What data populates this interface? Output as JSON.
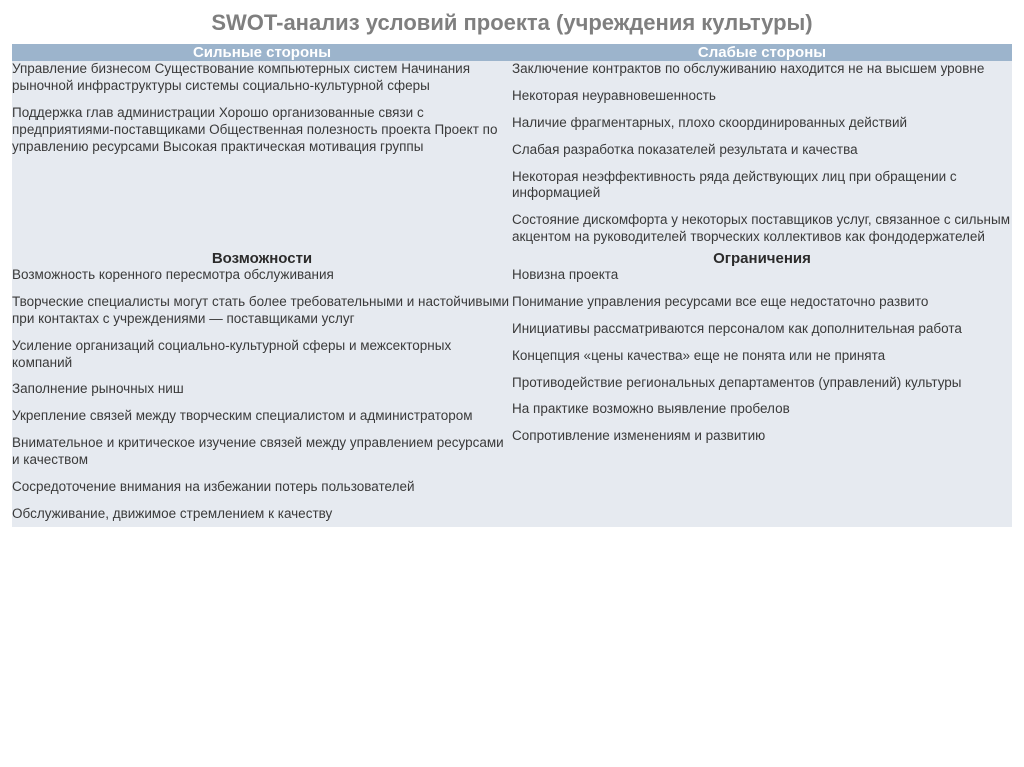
{
  "title": "SWOT-анализ условий проекта (учреждения культуры)",
  "colors": {
    "title_text": "#7f7f7f",
    "header_bg": "#9cb4cc",
    "header_text": "#ffffff",
    "cell_bg": "#e6eaf0",
    "body_text": "#3a3a3a"
  },
  "fonts": {
    "title_size": 22,
    "header_size": 15,
    "body_size": 13.5
  },
  "quadrants": {
    "top_left": {
      "header": "Сильные стороны",
      "items": [
        "Управление бизнесом Существование компьютерных систем Начинания рыночной инфраструктуры системы социально-культурной сферы",
        "Поддержка глав администрации Хорошо организованные связи с предприятиями-поставщиками Общественная полезность проекта Проект по управлению ресурсами Высокая практическая мотивация группы"
      ]
    },
    "top_right": {
      "header": "Слабые стороны",
      "items": [
        "Заключение контрактов по обслуживанию находится не на высшем уровне",
        "Некоторая неуравновешенность",
        "Наличие фрагментарных, плохо скоординированных действий",
        "Слабая разработка показателей результата и качества",
        "Некоторая неэффективность ряда действующих лиц при обращении с информацией",
        "Состояние дискомфорта у некоторых поставщиков услуг, связанное с сильным акцентом на руководителей творческих коллективов как фондодержателей"
      ]
    },
    "bottom_left": {
      "header": "Возможности",
      "items": [
        "Возможность коренного пересмотра обслуживания",
        "Творческие специалисты могут стать более требовательными и настойчивыми при контактах с учреждениями — поставщиками услуг",
        "Усиление организаций социально-культурной сферы и межсекторных компаний",
        "Заполнение рыночных ниш",
        "Укрепление связей между творческим специалистом и администратором",
        "Внимательное и критическое изучение связей между управлением ресурсами и качеством",
        "Сосредоточение внимания на избежании потерь пользователей",
        "Обслуживание, движимое стремлением к качеству"
      ]
    },
    "bottom_right": {
      "header": "Ограничения",
      "items": [
        "Новизна проекта",
        "Понимание управления ресурсами все еще недостаточно развито",
        "Инициативы рассматриваются персоналом как дополнительная работа",
        "Концепция «цены качества» еще не понята или не принята",
        "Противодействие региональных департаментов (управлений) культуры",
        "На практике возможно выявление пробелов",
        "Сопротивление изменениям и развитию"
      ]
    }
  }
}
